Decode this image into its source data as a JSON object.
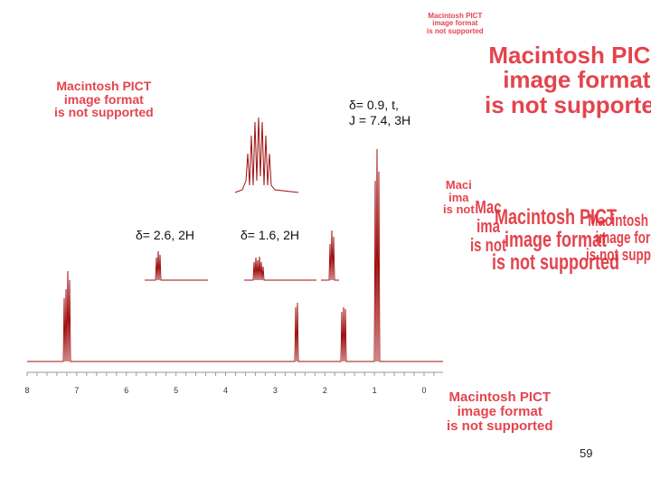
{
  "annotations": {
    "triplet": [
      "δ= 0.9, t,",
      "J = 7.4, 3H"
    ],
    "quartet_left": "δ= 2.6, 2H",
    "sextet": "δ= 1.6, 2H"
  },
  "spectrum": {
    "axis_labels": [
      "8",
      "7",
      "6",
      "5",
      "4",
      "3",
      "2",
      "1",
      "0"
    ]
  },
  "placeholders": [
    {
      "lines": [
        "Macintosh PICT",
        "image format",
        "is not supported"
      ]
    },
    {
      "lines": [
        "Macintosh PICT",
        "image format",
        "is not supported"
      ]
    },
    {
      "lines": [
        "Macintosh PICT",
        "image format",
        "is not supported"
      ]
    },
    {
      "lines": [
        "Maci",
        "ima",
        "is not"
      ]
    },
    {
      "lines": [
        "Mac",
        "ima",
        "is not"
      ]
    },
    {
      "lines": [
        "Macintosh PICT",
        "image format",
        "is not supported"
      ]
    },
    {
      "lines": [
        "Macintosh PICT",
        "image format",
        "is not supported"
      ]
    },
    {
      "lines": [
        "Macintosh PICT",
        "image format",
        "is not supported"
      ]
    }
  ],
  "page_number": "59"
}
